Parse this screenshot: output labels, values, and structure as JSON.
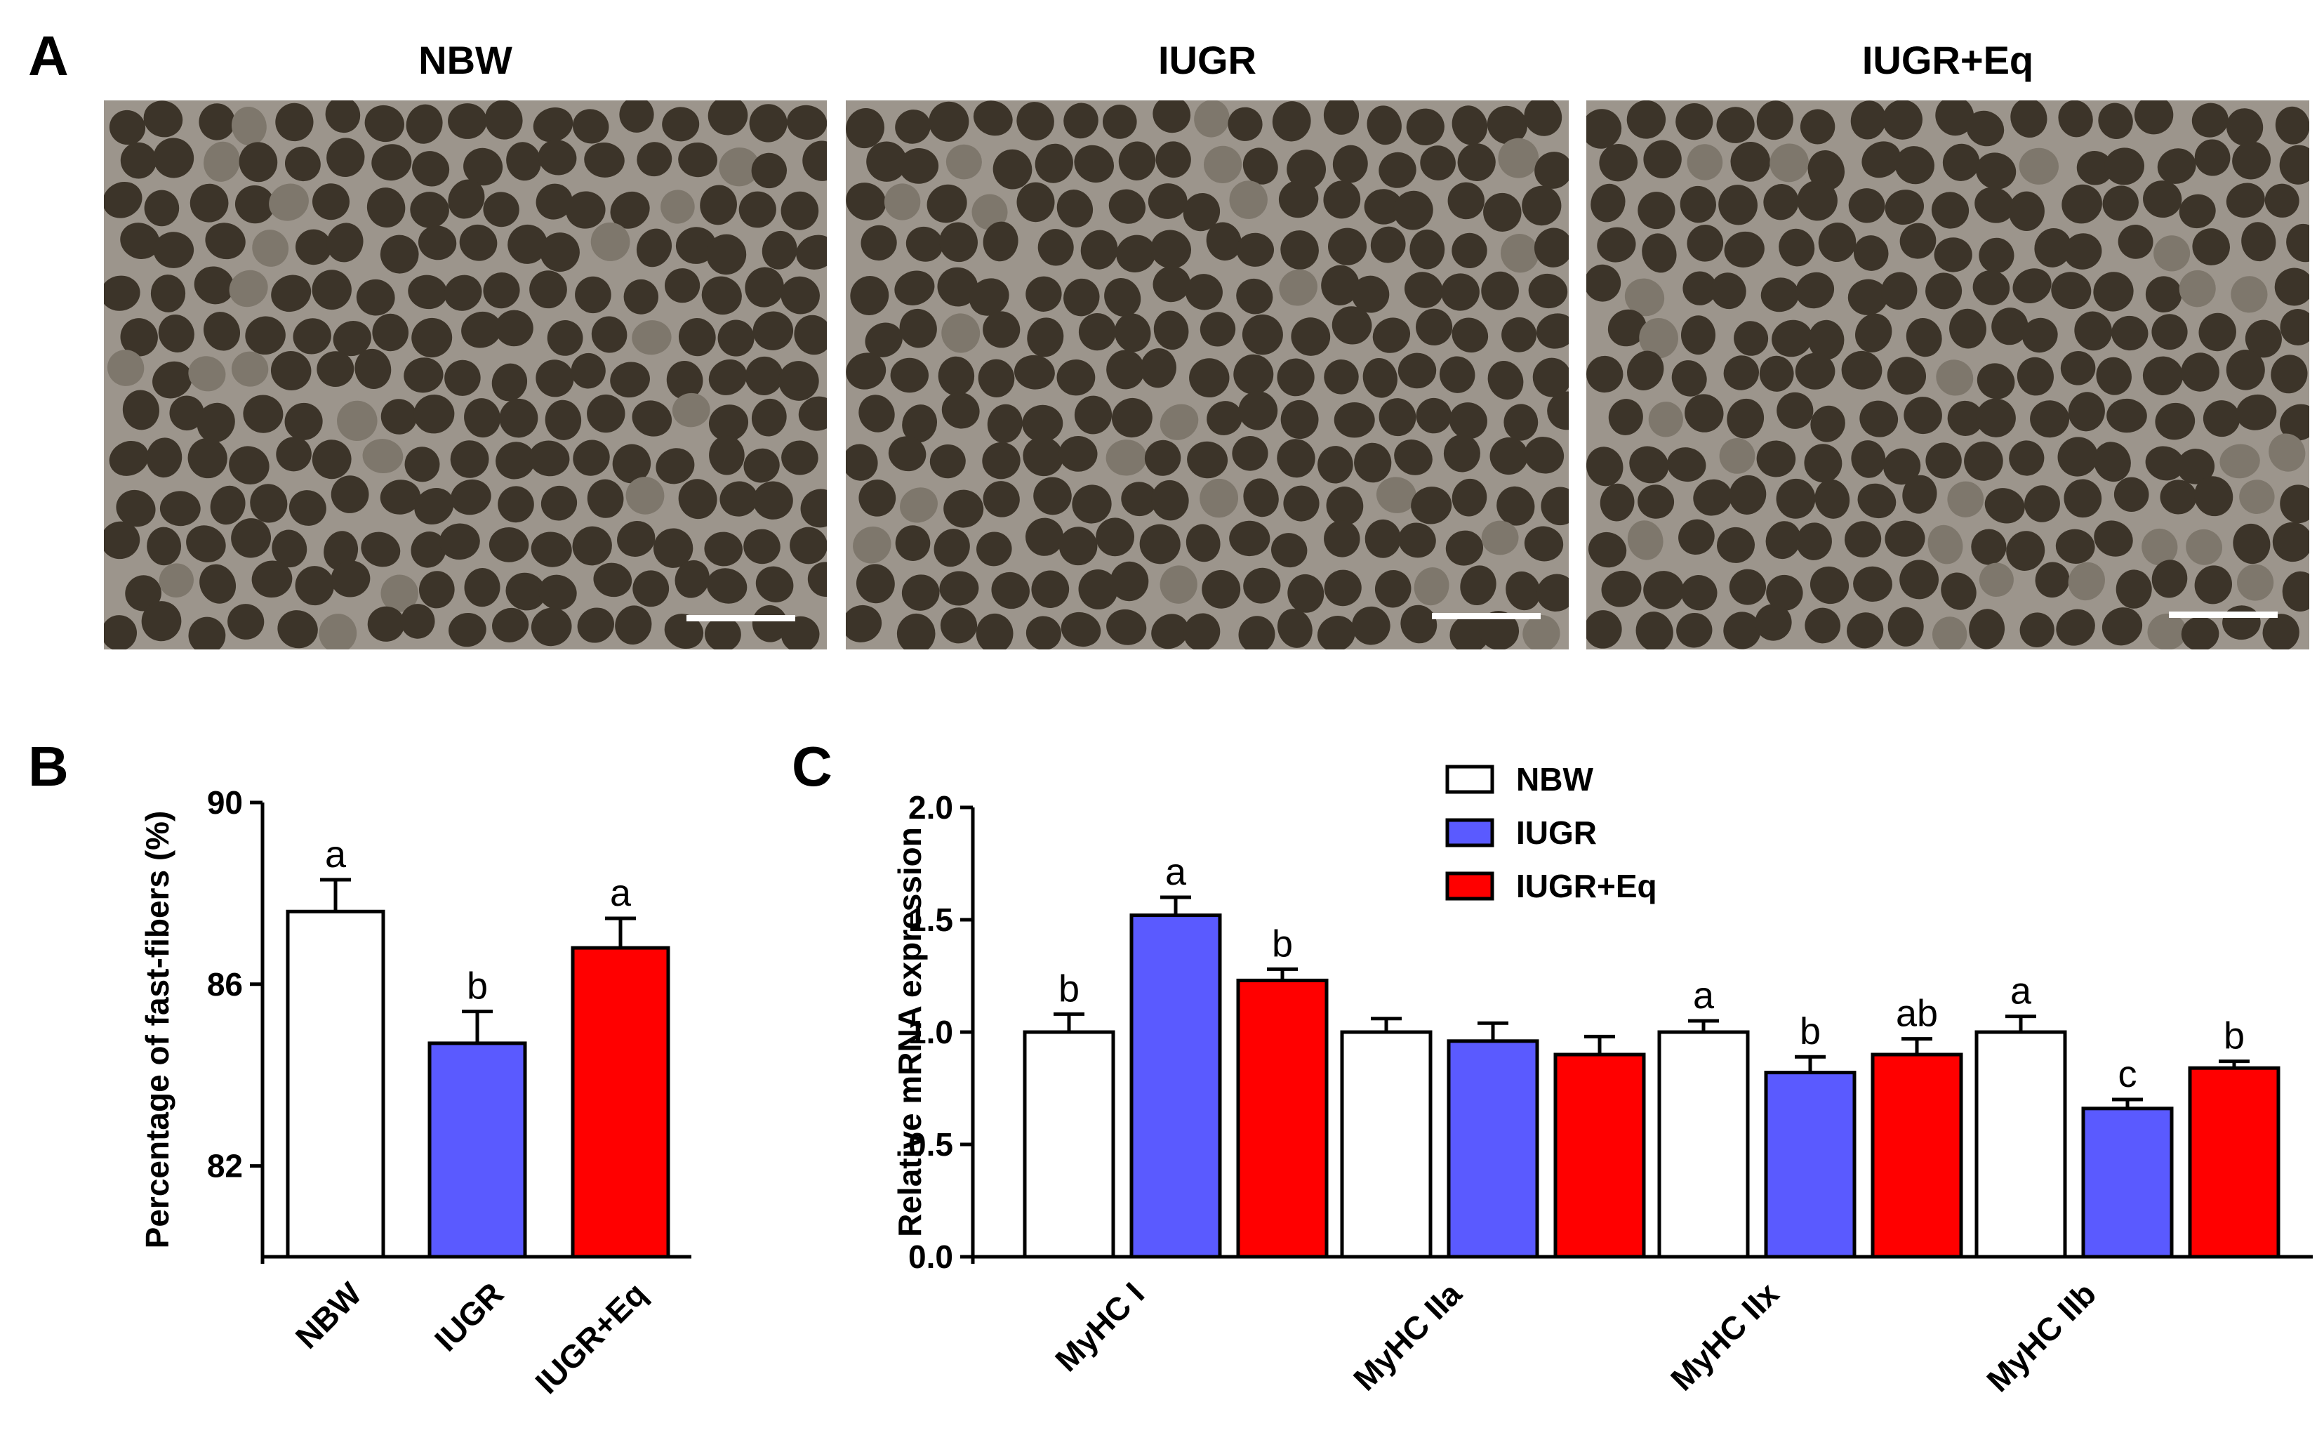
{
  "panels": {
    "a": {
      "letter": "A",
      "titles": [
        "NBW",
        "IUGR",
        "IUGR+Eq"
      ]
    },
    "b": {
      "letter": "B"
    },
    "c": {
      "letter": "C"
    }
  },
  "colors": {
    "NBW": "#ffffff",
    "IUGR": "#5a5aff",
    "IUGR+Eq": "#ff0000",
    "stroke": "#000000",
    "tissue_fiber": "#3c3429",
    "tissue_septa": "#9c958c",
    "tissue_light": "#7e776c"
  },
  "chart_data": [
    {
      "panel": "B",
      "type": "bar",
      "categories": [
        "NBW",
        "IUGR",
        "IUGR+Eq"
      ],
      "values": [
        87.6,
        84.7,
        86.8
      ],
      "errors": [
        0.7,
        0.7,
        0.65
      ],
      "letters": [
        "a",
        "b",
        "a"
      ],
      "ylabel": "Percentage of fast-fibers (%)",
      "ylim": [
        80,
        90
      ],
      "yticks": [
        82,
        86,
        90
      ]
    },
    {
      "panel": "C",
      "type": "bar",
      "categories": [
        "MyHC I",
        "MyHC IIa",
        "MyHC IIx",
        "MyHC IIb"
      ],
      "series": [
        {
          "name": "NBW",
          "values": [
            1.0,
            1.0,
            1.0,
            1.0
          ],
          "errors": [
            0.08,
            0.06,
            0.05,
            0.07
          ],
          "letters": [
            "b",
            "",
            "a",
            "a"
          ]
        },
        {
          "name": "IUGR",
          "values": [
            1.52,
            0.96,
            0.82,
            0.66
          ],
          "errors": [
            0.08,
            0.08,
            0.07,
            0.04
          ],
          "letters": [
            "a",
            "",
            "b",
            "c"
          ]
        },
        {
          "name": "IUGR+Eq",
          "values": [
            1.23,
            0.9,
            0.9,
            0.84
          ],
          "errors": [
            0.05,
            0.08,
            0.07,
            0.03
          ],
          "letters": [
            "b",
            "",
            "ab",
            "b"
          ]
        }
      ],
      "ylabel": "Relative mRNA expression",
      "ylim": [
        0,
        2.0
      ],
      "yticks": [
        "0.0",
        "0.5",
        "1.0",
        "1.5",
        "2.0"
      ],
      "legend": "top"
    }
  ]
}
